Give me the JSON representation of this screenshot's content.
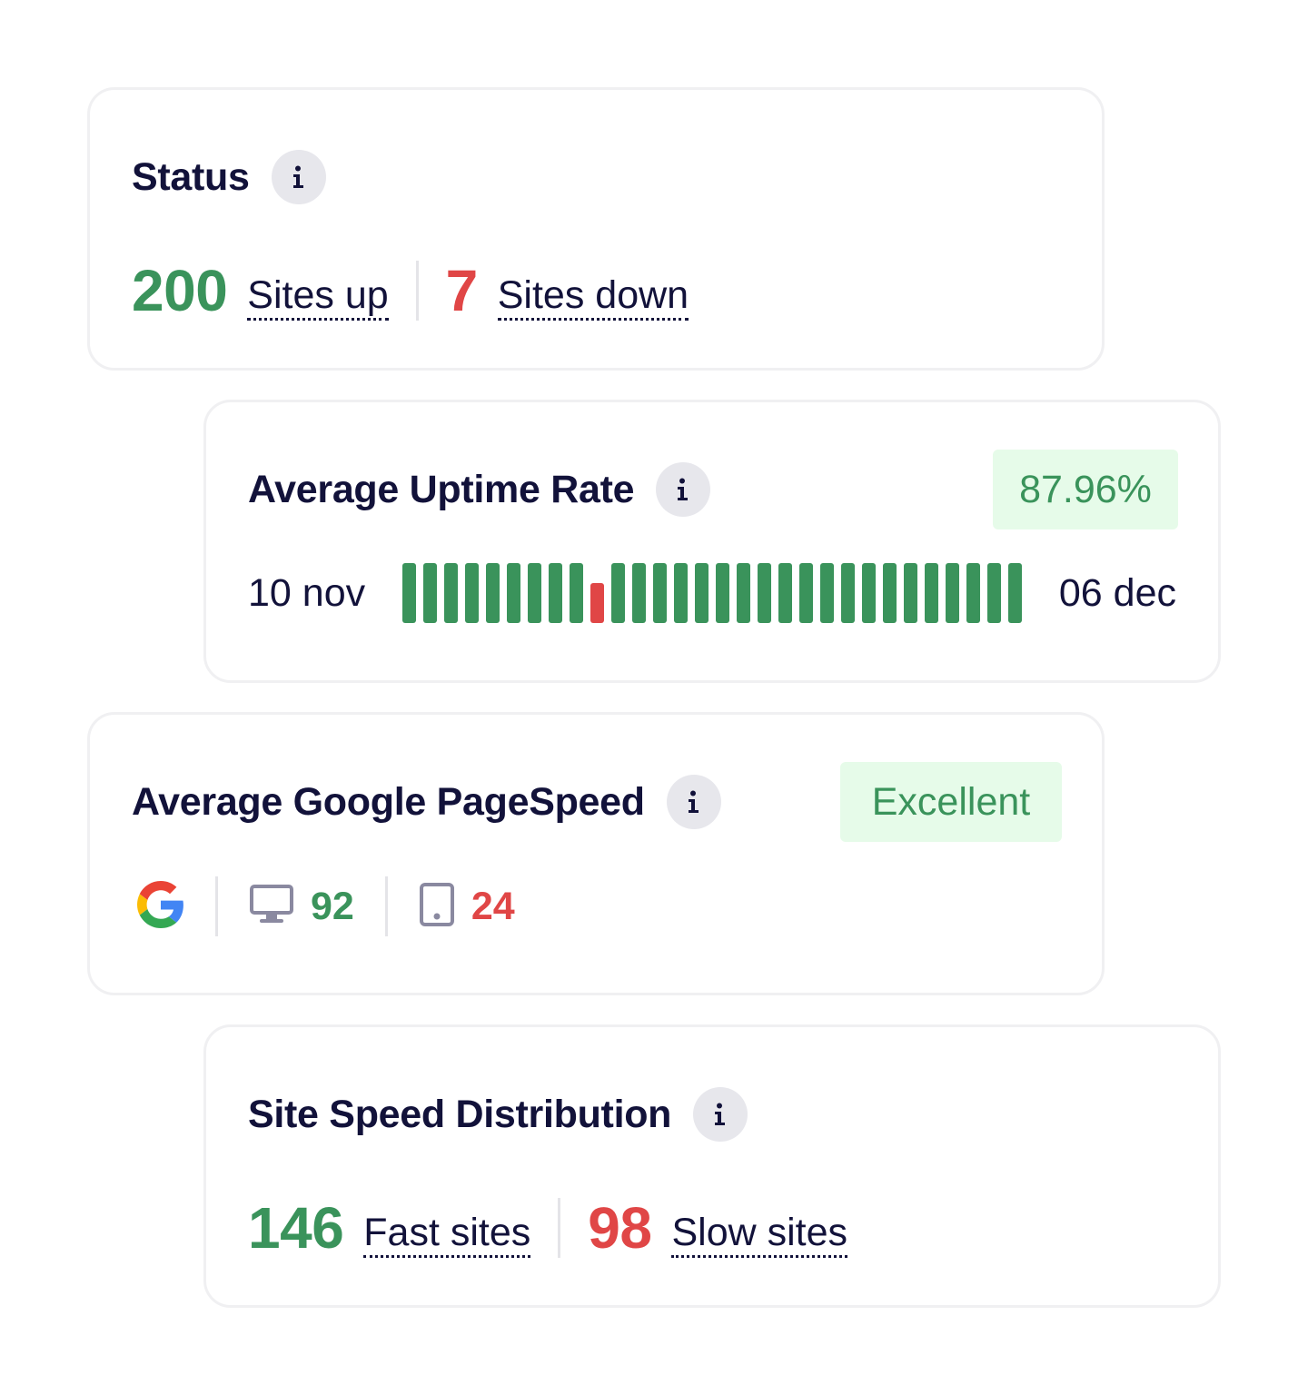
{
  "status_card": {
    "title": "Status",
    "info_icon": "info-icon",
    "sites_up_count": "200",
    "sites_up_label": "Sites up",
    "sites_down_count": "7",
    "sites_down_label": "Sites down"
  },
  "uptime_card": {
    "title": "Average Uptime Rate",
    "info_icon": "info-icon",
    "rate": "87.96%",
    "start_date": "10 nov",
    "end_date": "06 dec",
    "days": [
      "up",
      "up",
      "up",
      "up",
      "up",
      "up",
      "up",
      "up",
      "up",
      "down",
      "up",
      "up",
      "up",
      "up",
      "up",
      "up",
      "up",
      "up",
      "up",
      "up",
      "up",
      "up",
      "up",
      "up",
      "up",
      "up",
      "up",
      "up",
      "up",
      "up"
    ]
  },
  "pagespeed_card": {
    "title": "Average Google PageSpeed",
    "info_icon": "info-icon",
    "rating": "Excellent",
    "provider_icon": "google-icon",
    "desktop_icon": "desktop-icon",
    "desktop_score": "92",
    "mobile_icon": "mobile-icon",
    "mobile_score": "24"
  },
  "distribution_card": {
    "title": "Site Speed Distribution",
    "info_icon": "info-icon",
    "fast_count": "146",
    "fast_label": "Fast sites",
    "slow_count": "98",
    "slow_label": "Slow sites"
  },
  "colors": {
    "good": "#3a935b",
    "bad": "#e04646",
    "badge_bg": "#e6fbe9",
    "text": "#12123a",
    "icon_bg": "#e7e7ec"
  }
}
